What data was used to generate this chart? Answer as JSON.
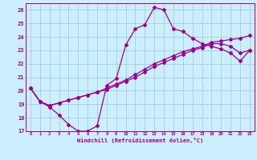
{
  "bg_color": "#cceeff",
  "grid_color": "#99cccc",
  "line_color": "#990099",
  "marker": "D",
  "marker_size": 2.0,
  "line_width": 0.9,
  "xlim": [
    -0.5,
    23.5
  ],
  "ylim": [
    17,
    26.5
  ],
  "yticks": [
    17,
    18,
    19,
    20,
    21,
    22,
    23,
    24,
    25,
    26
  ],
  "xticks": [
    0,
    1,
    2,
    3,
    4,
    5,
    6,
    7,
    8,
    9,
    10,
    11,
    12,
    13,
    14,
    15,
    16,
    17,
    18,
    19,
    20,
    21,
    22,
    23
  ],
  "xlabel": "Windchill (Refroidissement éolien,°C)",
  "series": [
    [
      20.2,
      19.2,
      18.8,
      18.2,
      17.5,
      17.0,
      17.0,
      17.4,
      20.4,
      20.9,
      23.4,
      24.6,
      24.9,
      26.2,
      26.0,
      24.6,
      24.4,
      23.9,
      23.5,
      23.3,
      23.1,
      22.8,
      22.2,
      23.0
    ],
    [
      20.2,
      19.2,
      18.9,
      19.1,
      19.3,
      19.5,
      19.7,
      19.9,
      20.1,
      20.4,
      20.7,
      21.0,
      21.4,
      21.8,
      22.1,
      22.4,
      22.7,
      23.0,
      23.2,
      23.5,
      23.5,
      23.3,
      22.8,
      23.0
    ],
    [
      20.2,
      19.2,
      18.9,
      19.1,
      19.3,
      19.5,
      19.7,
      19.9,
      20.2,
      20.5,
      20.8,
      21.2,
      21.6,
      22.0,
      22.3,
      22.6,
      22.9,
      23.1,
      23.3,
      23.6,
      23.7,
      23.8,
      23.9,
      24.1
    ]
  ]
}
